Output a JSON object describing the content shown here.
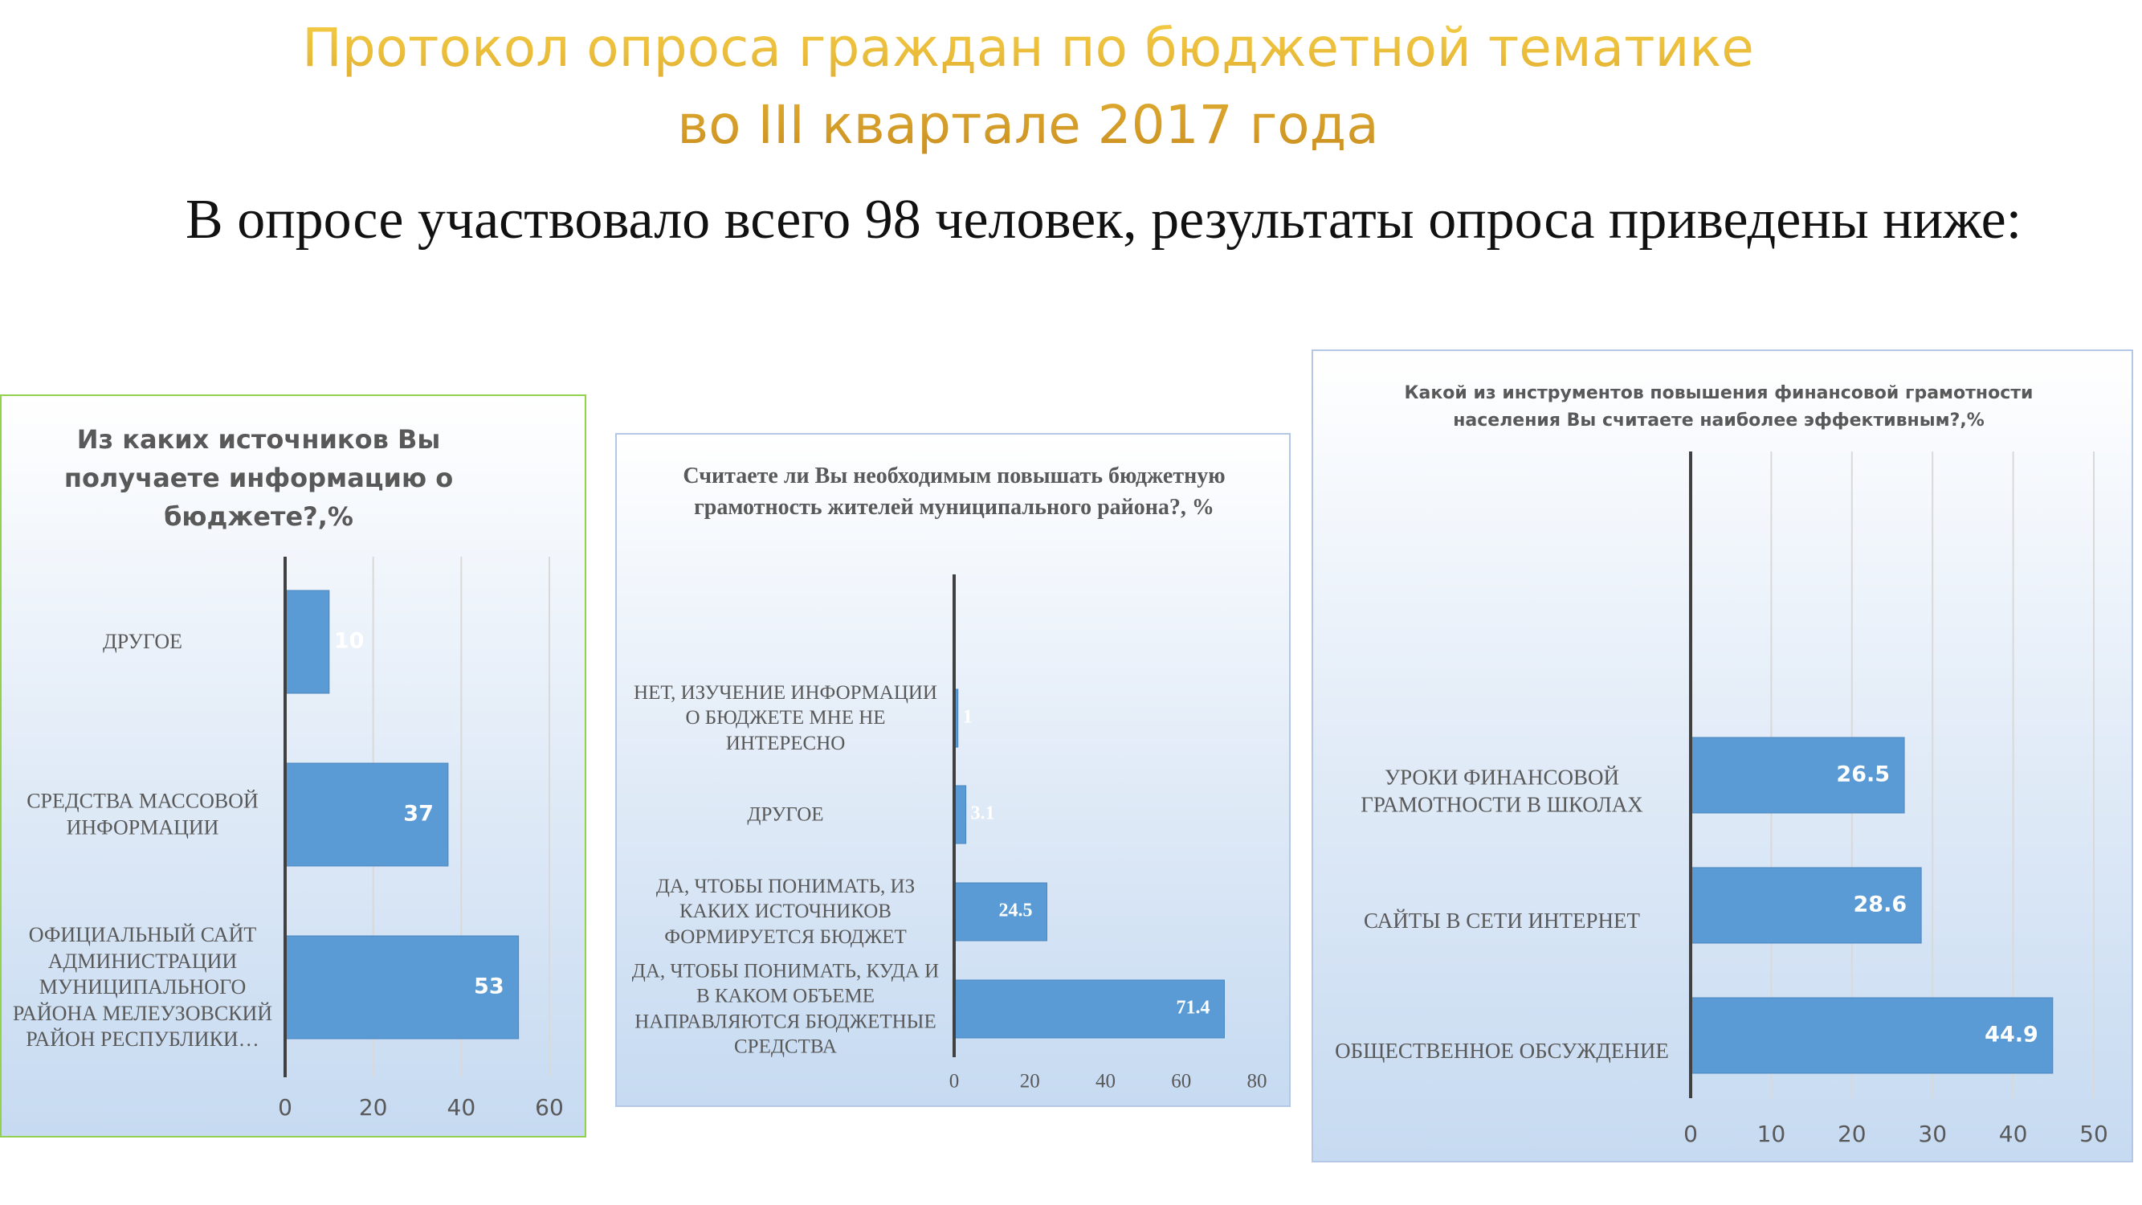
{
  "header": {
    "title": [
      "Протокол опроса граждан по бюджетной тематике",
      "во III квартале 2017 года"
    ],
    "intro": "В опросе участвовало всего 98 человек, результаты опроса приведены ниже:"
  },
  "chart_data": [
    {
      "type": "bar",
      "orientation": "horizontal",
      "title": "Из каких источников Вы получаете информацию о бюджете?,%",
      "categories": [
        "ДРУГОЕ",
        "СРЕДСТВА МАССОВОЙ ИНФОРМАЦИИ",
        "ОФИЦИАЛЬНЫЙ САЙТ АДМИНИСТРАЦИИ МУНИЦИПАЛЬНОГО РАЙОНА МЕЛЕУЗОВСКИЙ РАЙОН РЕСПУБЛИКИ…"
      ],
      "values": [
        10,
        37,
        53
      ],
      "color": "#5b9bd5",
      "xlim": [
        0,
        60
      ],
      "xticks": [
        0,
        20,
        40,
        60
      ],
      "grid": true
    },
    {
      "type": "bar",
      "orientation": "horizontal",
      "title": "Считаете ли Вы необходимым повышать бюджетную грамотность жителей муниципального района?, %",
      "categories": [
        "НЕТ, ИЗУЧЕНИЕ ИНФОРМАЦИИ О БЮДЖЕТЕ МНЕ НЕ ИНТЕРЕСНО",
        "ДРУГОЕ",
        "ДА, ЧТОБЫ ПОНИМАТЬ, ИЗ КАКИХ ИСТОЧНИКОВ ФОРМИРУЕТСЯ БЮДЖЕТ",
        "ДА, ЧТОБЫ ПОНИМАТЬ, КУДА И В КАКОМ ОБЪЕМЕ НАПРАВЛЯЮТСЯ БЮДЖЕТНЫЕ СРЕДСТВА"
      ],
      "values": [
        1,
        3.1,
        24.5,
        71.4
      ],
      "color": "#5b9bd5",
      "xlim": [
        0,
        80
      ],
      "xticks": [
        0,
        20,
        40,
        60,
        80
      ],
      "grid": false
    },
    {
      "type": "bar",
      "orientation": "horizontal",
      "title": "Какой из инструментов повышения финансовой грамотности населения Вы считаете наиболее эффективным?,%",
      "categories": [
        "УРОКИ ФИНАНСОВОЙ ГРАМОТНОСТИ В ШКОЛАХ",
        "САЙТЫ В СЕТИ ИНТЕРНЕТ",
        "ОБЩЕСТВЕННОЕ ОБСУЖДЕНИЕ"
      ],
      "values": [
        26.5,
        28.6,
        44.9
      ],
      "color": "#5b9bd5",
      "xlim": [
        0,
        50
      ],
      "xticks": [
        0,
        10,
        20,
        30,
        40,
        50
      ],
      "grid": true
    }
  ]
}
